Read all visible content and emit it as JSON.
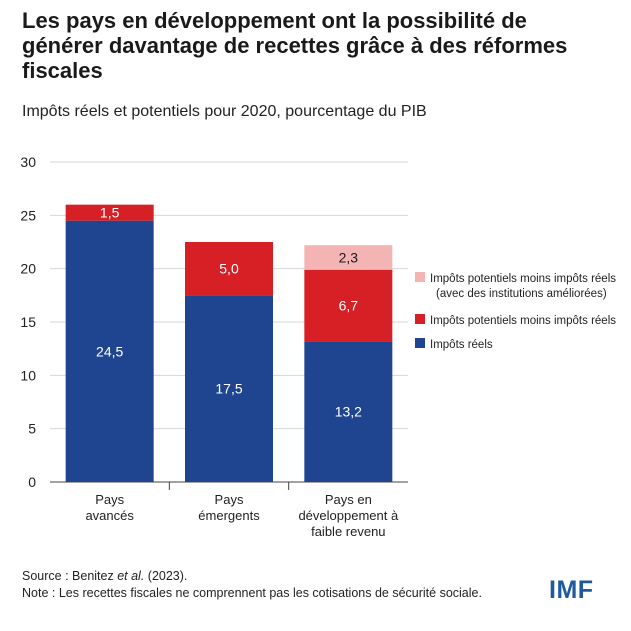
{
  "title": "Les pays en développement ont la possibilité de générer davantage de recettes grâce à des réformes fiscales",
  "subtitle": "Impôts réels et potentiels pour 2020, pourcentage du PIB",
  "chart_data": {
    "type": "bar",
    "stacked": true,
    "categories": [
      [
        "Pays",
        "avancés"
      ],
      [
        "Pays",
        "émergents"
      ],
      [
        "Pays en",
        "développement à",
        "faible revenu"
      ]
    ],
    "series": [
      {
        "name": "Impôts réels",
        "values": [
          24.5,
          17.5,
          13.2
        ],
        "labels": [
          "24,5",
          "17,5",
          "13,2"
        ],
        "color": "#1f4590",
        "label_color": "#ffffff"
      },
      {
        "name": "Impôts potentiels moins impôts réels",
        "values": [
          1.5,
          5.0,
          6.7
        ],
        "labels": [
          "1,5",
          "5,0",
          "6,7"
        ],
        "color": "#d71f26",
        "label_color": "#ffffff"
      },
      {
        "name": "Impôts potentiels moins impôts réels",
        "name_line2": "(avec des institutions améliorées)",
        "values": [
          null,
          null,
          2.3
        ],
        "labels": [
          null,
          null,
          "2,3"
        ],
        "color": "#f4b4b4",
        "label_color": "#1a1a1a"
      }
    ],
    "legend_order": [
      2,
      1,
      0
    ],
    "legend_position": "right",
    "ylim": [
      0,
      30
    ],
    "yticks": [
      0,
      5,
      10,
      15,
      20,
      25,
      30
    ],
    "grid": true,
    "xlabel": "",
    "ylabel": ""
  },
  "source_prefix": "Source : Benitez ",
  "source_italic": "et al.",
  "source_suffix": " (2023).",
  "note": "Note : Les recettes fiscales ne comprennent pas les cotisations de sécurité sociale.",
  "logo": "IMF"
}
